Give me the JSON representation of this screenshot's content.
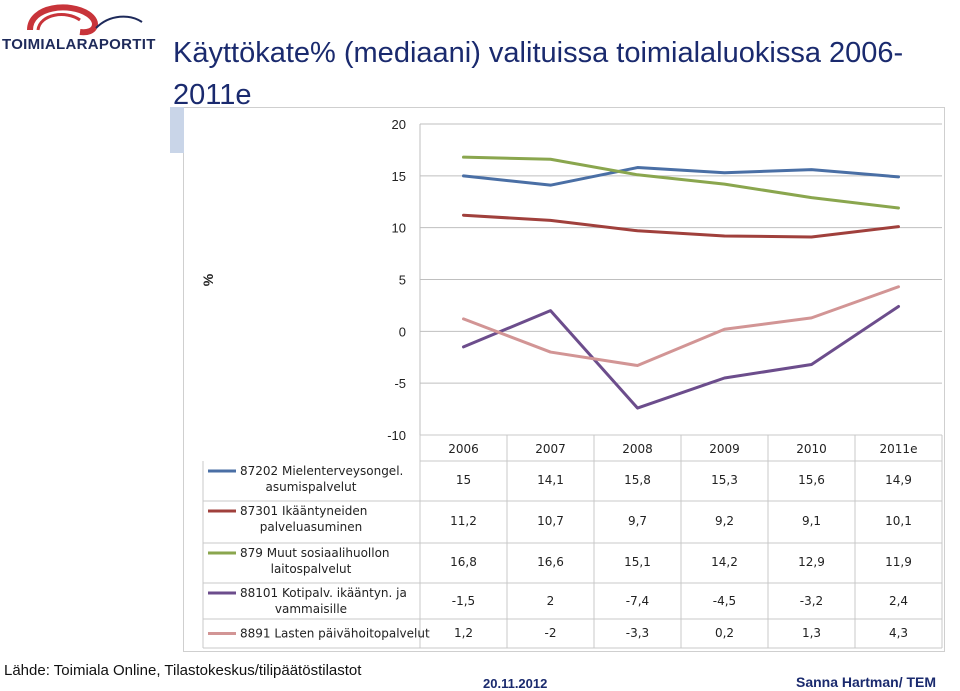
{
  "header": {
    "logo_text": "TOIMIALARAPORTIT",
    "title": "Käyttökate% (mediaani) valituissa toimialaluokissa 2006-2011e"
  },
  "footer": {
    "source": "Lähde: Toimiala Online, Tilastokeskus/tilipäätöstilastot",
    "date": "20.11.2012",
    "author": "Sanna Hartman/ TEM"
  },
  "colors": {
    "s1": "#4a6fa5",
    "s2": "#a0403c",
    "s3": "#8aa64e",
    "s4": "#6c4d8c",
    "s5": "#d29595",
    "logo_red": "#c8343a",
    "logo_navy": "#1e2a5a"
  },
  "chart_data": {
    "type": "line",
    "title": "Käyttökate% (mediaani) valituissa toimialaluokissa 2006-2011e",
    "ylabel": "%",
    "xlabel": "",
    "ylim": [
      -10,
      20
    ],
    "yticks": [
      "20",
      "15",
      "10",
      "5",
      "0",
      "-5",
      "-10"
    ],
    "categories": [
      "2006",
      "2007",
      "2008",
      "2009",
      "2010",
      "2011e"
    ],
    "grid": true,
    "legend": "left, as data table",
    "series": [
      {
        "name_lines": [
          "87202 Mielenterveysongel.",
          "asumispalvelut"
        ],
        "values": [
          15,
          14.1,
          15.8,
          15.3,
          15.6,
          14.9
        ],
        "labels": [
          "15",
          "14,1",
          "15,8",
          "15,3",
          "15,6",
          "14,9"
        ],
        "color": "#4a6fa5"
      },
      {
        "name_lines": [
          "87301 Ikääntyneiden",
          "palveluasuminen"
        ],
        "values": [
          11.2,
          10.7,
          9.7,
          9.2,
          9.1,
          10.1
        ],
        "labels": [
          "11,2",
          "10,7",
          "9,7",
          "9,2",
          "9,1",
          "10,1"
        ],
        "color": "#a0403c"
      },
      {
        "name_lines": [
          "879 Muut sosiaalihuollon",
          "laitospalvelut"
        ],
        "values": [
          16.8,
          16.6,
          15.1,
          14.2,
          12.9,
          11.9
        ],
        "labels": [
          "16,8",
          "16,6",
          "15,1",
          "14,2",
          "12,9",
          "11,9"
        ],
        "color": "#8aa64e"
      },
      {
        "name_lines": [
          "88101 Kotipalv. ikääntyn. ja",
          "vammaisille"
        ],
        "values": [
          -1.5,
          2,
          -7.4,
          -4.5,
          -3.2,
          2.4
        ],
        "labels": [
          "-1,5",
          "2",
          "-7,4",
          "-4,5",
          "-3,2",
          "2,4"
        ],
        "color": "#6c4d8c"
      },
      {
        "name_lines": [
          "8891 Lasten päivähoitopalvelut"
        ],
        "values": [
          1.2,
          -2,
          -3.3,
          0.2,
          1.3,
          4.3
        ],
        "labels": [
          "1,2",
          "-2",
          "-3,3",
          "0,2",
          "1,3",
          "4,3"
        ],
        "color": "#d29595"
      }
    ]
  }
}
